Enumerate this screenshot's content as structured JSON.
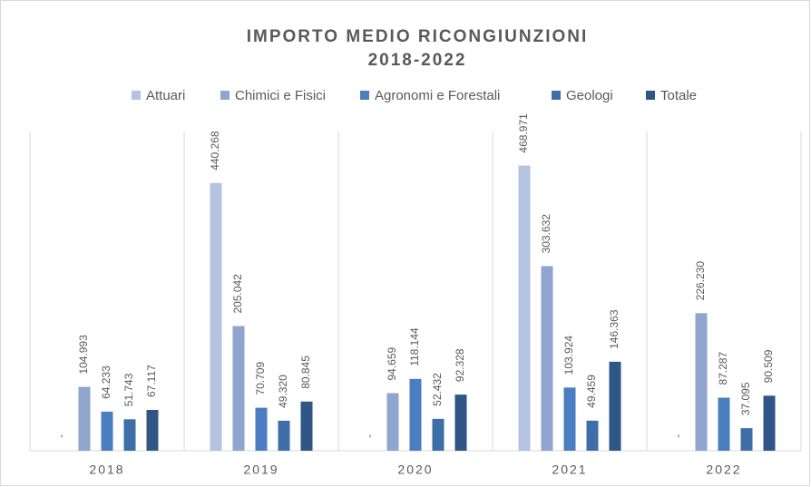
{
  "chart_data": {
    "type": "bar",
    "title": "IMPORTO MEDIO RICONGIUNZIONI",
    "subtitle": "2018-2022",
    "categories": [
      "2018",
      "2019",
      "2020",
      "2021",
      "2022"
    ],
    "series": [
      {
        "name": "Attuari",
        "color": "#b4c3e0",
        "values": [
          0,
          440268,
          0,
          468971,
          0
        ],
        "value_labels": [
          "-",
          "440.268",
          "-",
          "468.971",
          "-"
        ]
      },
      {
        "name": "Chimici e Fisici",
        "color": "#8fa5cf",
        "values": [
          104993,
          205042,
          94659,
          303632,
          226230
        ],
        "value_labels": [
          "104.993",
          "205.042",
          "94.659",
          "303.632",
          "226.230"
        ]
      },
      {
        "name": "Agronomi e Forestali",
        "color": "#4a7ec0",
        "values": [
          64233,
          70709,
          118144,
          103924,
          87287
        ],
        "value_labels": [
          "64.233",
          "70.709",
          "118.144",
          "103.924",
          "87.287"
        ]
      },
      {
        "name": "Geologi",
        "color": "#3e6ea8",
        "values": [
          51743,
          49320,
          52432,
          49459,
          37095
        ],
        "value_labels": [
          "51.743",
          "49.320",
          "52.432",
          "49.459",
          "37.095"
        ]
      },
      {
        "name": "Totale",
        "color": "#2f5687",
        "values": [
          67117,
          80845,
          92328,
          146363,
          90509
        ],
        "value_labels": [
          "67.117",
          "80.845",
          "92.328",
          "146.363",
          "90.509"
        ]
      }
    ],
    "ylim": [
      0,
      525000
    ],
    "legend": "top"
  }
}
